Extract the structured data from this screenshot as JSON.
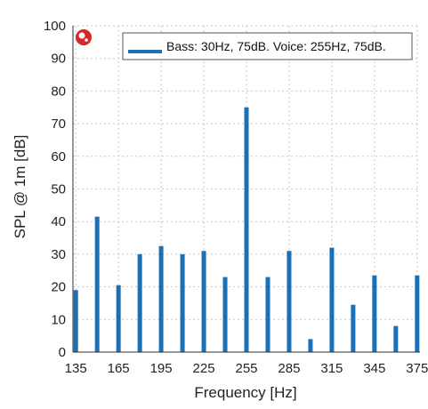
{
  "chart_data": {
    "type": "bar",
    "xlabel": "Frequency [Hz]",
    "ylabel": "SPL @ 1m [dB]",
    "xlim": [
      133,
      377
    ],
    "ylim": [
      0,
      100
    ],
    "x_ticks": [
      135,
      165,
      195,
      225,
      255,
      285,
      315,
      345,
      375
    ],
    "y_ticks": [
      0,
      10,
      20,
      30,
      40,
      50,
      60,
      70,
      80,
      90,
      100
    ],
    "grid": true,
    "legend_position": "top-right",
    "legend_text": "Bass: 30Hz, 75dB. Voice: 255Hz, 75dB.",
    "bar_color": "#1a6fb5",
    "marker_color": "#d62828",
    "series": [
      {
        "x": [
          135,
          150,
          165,
          180,
          195,
          210,
          225,
          240,
          255,
          270,
          285,
          300,
          315,
          330,
          345,
          360,
          375
        ],
        "values": [
          19,
          41.5,
          20.5,
          30,
          32.5,
          30,
          31,
          23,
          75,
          23,
          31,
          4,
          32,
          14.5,
          23.5,
          8,
          23.5
        ]
      }
    ]
  }
}
